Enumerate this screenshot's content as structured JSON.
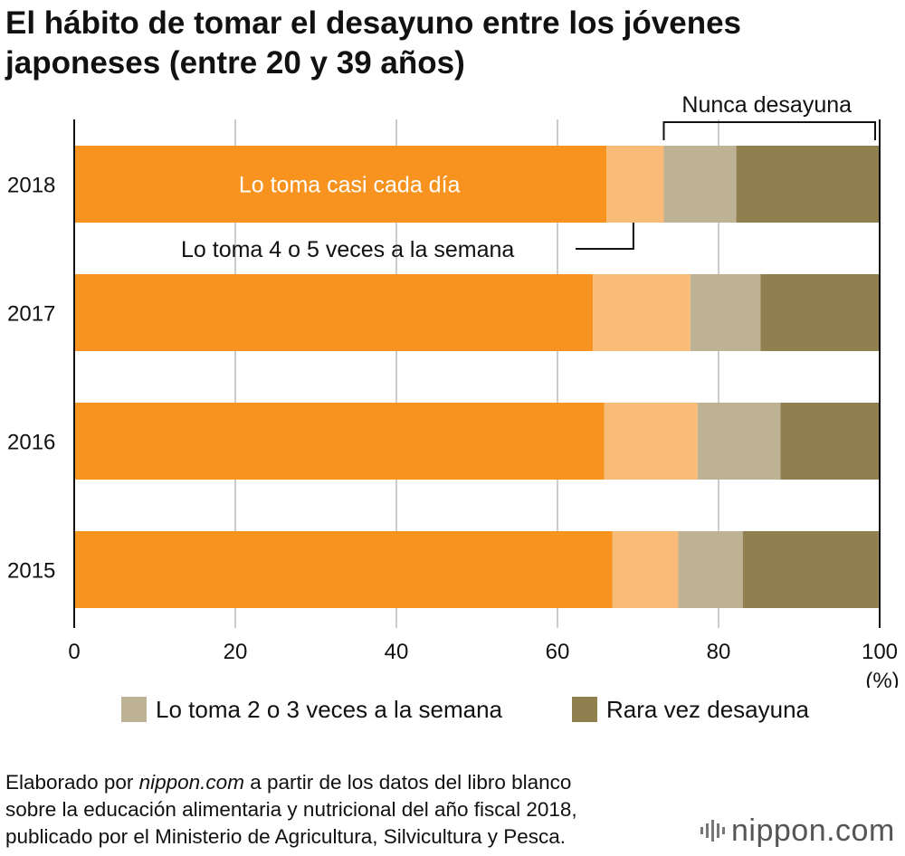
{
  "title": {
    "line1": "El hábito de tomar el desayuno entre los jóvenes",
    "line2": "japoneses (entre 20 y 39 años)"
  },
  "chart_data": {
    "type": "bar",
    "orientation": "horizontal",
    "stacked": true,
    "title": "El hábito de tomar el desayuno entre los jóvenes japoneses (entre 20 y 39 años)",
    "categories": [
      "2018",
      "2017",
      "2016",
      "2015"
    ],
    "series": [
      {
        "name": "Lo toma casi cada día",
        "color": "#F7931E",
        "values": [
          66.1,
          64.4,
          65.8,
          66.8
        ]
      },
      {
        "name": "Lo toma 4 o 5 veces a la semana",
        "color": "#F9BC78",
        "values": [
          7.1,
          12.1,
          11.6,
          8.2
        ]
      },
      {
        "name": "Lo toma 2 o 3 veces a la semana",
        "color": "#BDB394",
        "values": [
          9.0,
          8.7,
          10.3,
          8.0
        ]
      },
      {
        "name": "Rara vez desayuna",
        "color": "#91804F",
        "values": [
          17.8,
          14.8,
          12.3,
          16.8
        ]
      },
      {
        "name": "Nunca desayuna",
        "color": "#91804F",
        "values": [
          0,
          0,
          0,
          0.2
        ]
      }
    ],
    "xlim": [
      0,
      100
    ],
    "xticks": [
      0,
      20,
      40,
      60,
      80,
      100
    ],
    "xunit": "(%)",
    "grid": true,
    "annotations": {
      "inside_bar": "Lo toma casi cada día",
      "callout": "Lo toma 4 o 5 veces a la semana",
      "bracket": "Nunca desayuna"
    }
  },
  "legend": [
    {
      "label": "Lo toma 2 o 3 veces a la semana",
      "color": "#BDB394"
    },
    {
      "label": "Rara vez desayuna",
      "color": "#91804F"
    }
  ],
  "source": {
    "prefix": "Elaborado por ",
    "site": "nippon.com",
    "suffix": " a partir de los datos del libro blanco",
    "line2": "sobre la educación alimentaria y nutricional del año fiscal 2018,",
    "line3": "publicado por el Ministerio de Agricultura, Silvicultura y Pesca."
  },
  "logo": {
    "text": "nippon.com",
    "color": "#555555"
  }
}
